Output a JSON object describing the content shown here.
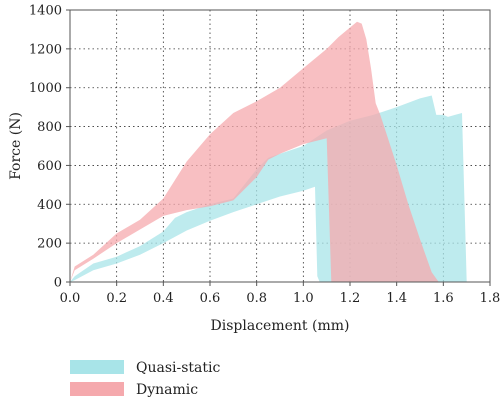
{
  "chart_data": {
    "type": "area",
    "title": "",
    "xlabel": "Displacement (mm)",
    "ylabel": "Force (N)",
    "xlim": [
      0.0,
      1.8
    ],
    "ylim": [
      0,
      1400
    ],
    "xticks": [
      "0.0",
      "0.2",
      "0.4",
      "0.6",
      "0.8",
      "1.0",
      "1.2",
      "1.4",
      "1.6",
      "1.8"
    ],
    "yticks": [
      "0",
      "200",
      "400",
      "600",
      "800",
      "1000",
      "1200",
      "1400"
    ],
    "grid": true,
    "legend_position": "bottom-left",
    "series": [
      {
        "name": "Quasi-static",
        "color": "#a8e4e8",
        "upper": [
          [
            0.0,
            0
          ],
          [
            0.02,
            30
          ],
          [
            0.1,
            95
          ],
          [
            0.2,
            130
          ],
          [
            0.3,
            185
          ],
          [
            0.4,
            260
          ],
          [
            0.45,
            330
          ],
          [
            0.5,
            360
          ],
          [
            0.6,
            400
          ],
          [
            0.7,
            430
          ],
          [
            0.8,
            580
          ],
          [
            0.85,
            640
          ],
          [
            0.9,
            660
          ],
          [
            1.0,
            700
          ],
          [
            1.1,
            780
          ],
          [
            1.2,
            830
          ],
          [
            1.3,
            860
          ],
          [
            1.4,
            900
          ],
          [
            1.5,
            945
          ],
          [
            1.55,
            960
          ],
          [
            1.57,
            860
          ],
          [
            1.6,
            860
          ],
          [
            1.62,
            850
          ],
          [
            1.65,
            860
          ],
          [
            1.68,
            870
          ],
          [
            1.7,
            0
          ]
        ],
        "lower": [
          [
            0.0,
            0
          ],
          [
            0.02,
            10
          ],
          [
            0.1,
            60
          ],
          [
            0.2,
            95
          ],
          [
            0.3,
            140
          ],
          [
            0.4,
            200
          ],
          [
            0.5,
            265
          ],
          [
            0.6,
            315
          ],
          [
            0.7,
            360
          ],
          [
            0.8,
            400
          ],
          [
            0.9,
            440
          ],
          [
            1.0,
            470
          ],
          [
            1.05,
            490
          ],
          [
            1.06,
            30
          ],
          [
            1.07,
            0
          ]
        ]
      },
      {
        "name": "Dynamic",
        "color": "#f5a9ad",
        "upper": [
          [
            0.0,
            0
          ],
          [
            0.02,
            80
          ],
          [
            0.1,
            140
          ],
          [
            0.2,
            250
          ],
          [
            0.3,
            320
          ],
          [
            0.4,
            430
          ],
          [
            0.5,
            620
          ],
          [
            0.6,
            760
          ],
          [
            0.7,
            870
          ],
          [
            0.8,
            930
          ],
          [
            0.9,
            1000
          ],
          [
            1.0,
            1100
          ],
          [
            1.1,
            1200
          ],
          [
            1.15,
            1260
          ],
          [
            1.2,
            1310
          ],
          [
            1.23,
            1340
          ],
          [
            1.25,
            1330
          ],
          [
            1.27,
            1250
          ],
          [
            1.29,
            1100
          ],
          [
            1.31,
            920
          ],
          [
            1.33,
            860
          ],
          [
            1.36,
            750
          ],
          [
            1.4,
            600
          ],
          [
            1.45,
            400
          ],
          [
            1.5,
            220
          ],
          [
            1.55,
            50
          ],
          [
            1.58,
            0
          ]
        ],
        "lower": [
          [
            0.0,
            0
          ],
          [
            0.02,
            60
          ],
          [
            0.1,
            120
          ],
          [
            0.2,
            200
          ],
          [
            0.3,
            270
          ],
          [
            0.4,
            340
          ],
          [
            0.5,
            370
          ],
          [
            0.6,
            390
          ],
          [
            0.7,
            420
          ],
          [
            0.8,
            540
          ],
          [
            0.85,
            630
          ],
          [
            0.9,
            660
          ],
          [
            1.0,
            710
          ],
          [
            1.1,
            740
          ],
          [
            1.12,
            0
          ]
        ]
      }
    ]
  }
}
